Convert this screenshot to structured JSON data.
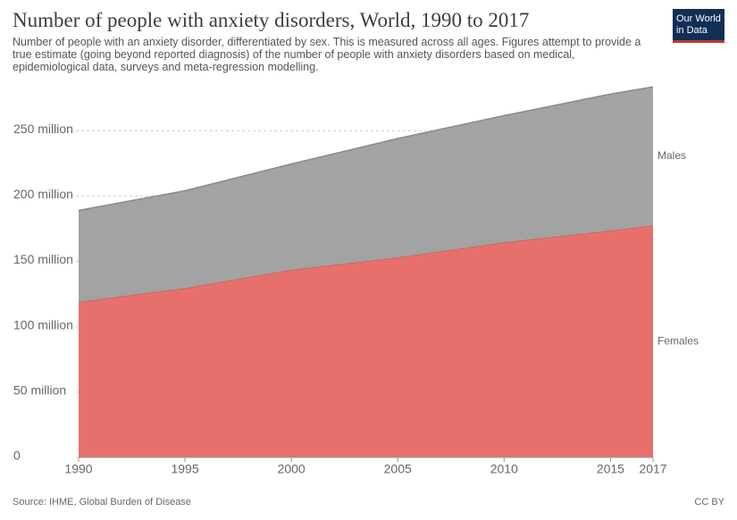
{
  "header": {
    "title": "Number of people with anxiety disorders, World, 1990 to 2017",
    "subtitle": "Number of people with an anxiety disorder, differentiated by sex. This is measured across all ages. Figures attempt to provide a true estimate (going beyond reported diagnosis) of the number of people with anxiety disorders based on medical, epidemiological data, surveys and meta-regression modelling.",
    "logo": [
      "Our World",
      "in Data"
    ]
  },
  "chart_data": {
    "type": "stacked_area",
    "x": [
      1990,
      1995,
      2000,
      2005,
      2010,
      2015,
      2017
    ],
    "xlim": [
      1990,
      2017
    ],
    "xticks": [
      1990,
      1995,
      2000,
      2005,
      2010,
      2015,
      2017
    ],
    "ylim": [
      0,
      285
    ],
    "yticks": [
      0,
      {
        "value": 50000000,
        "label": "50 million"
      },
      {
        "value": 100000000,
        "label": "100 million"
      },
      {
        "value": 150000000,
        "label": "150 million"
      },
      {
        "value": 200000000,
        "label": "200 million"
      },
      {
        "value": 250000000,
        "label": "250 million"
      }
    ],
    "grid": true,
    "series": [
      {
        "name": "Females",
        "color": "#e8706c",
        "label_color": "#c0392b",
        "values": [
          119,
          129.5,
          143.5,
          153,
          164.5,
          173.5,
          177.5
        ]
      },
      {
        "name": "Males",
        "color": "#a3a3a3",
        "label_color": "#666666",
        "values": [
          70,
          74.5,
          81,
          91,
          97,
          104.5,
          106
        ]
      }
    ]
  },
  "footer": {
    "source": "Source: IHME, Global Burden of Disease",
    "license": "CC BY"
  }
}
